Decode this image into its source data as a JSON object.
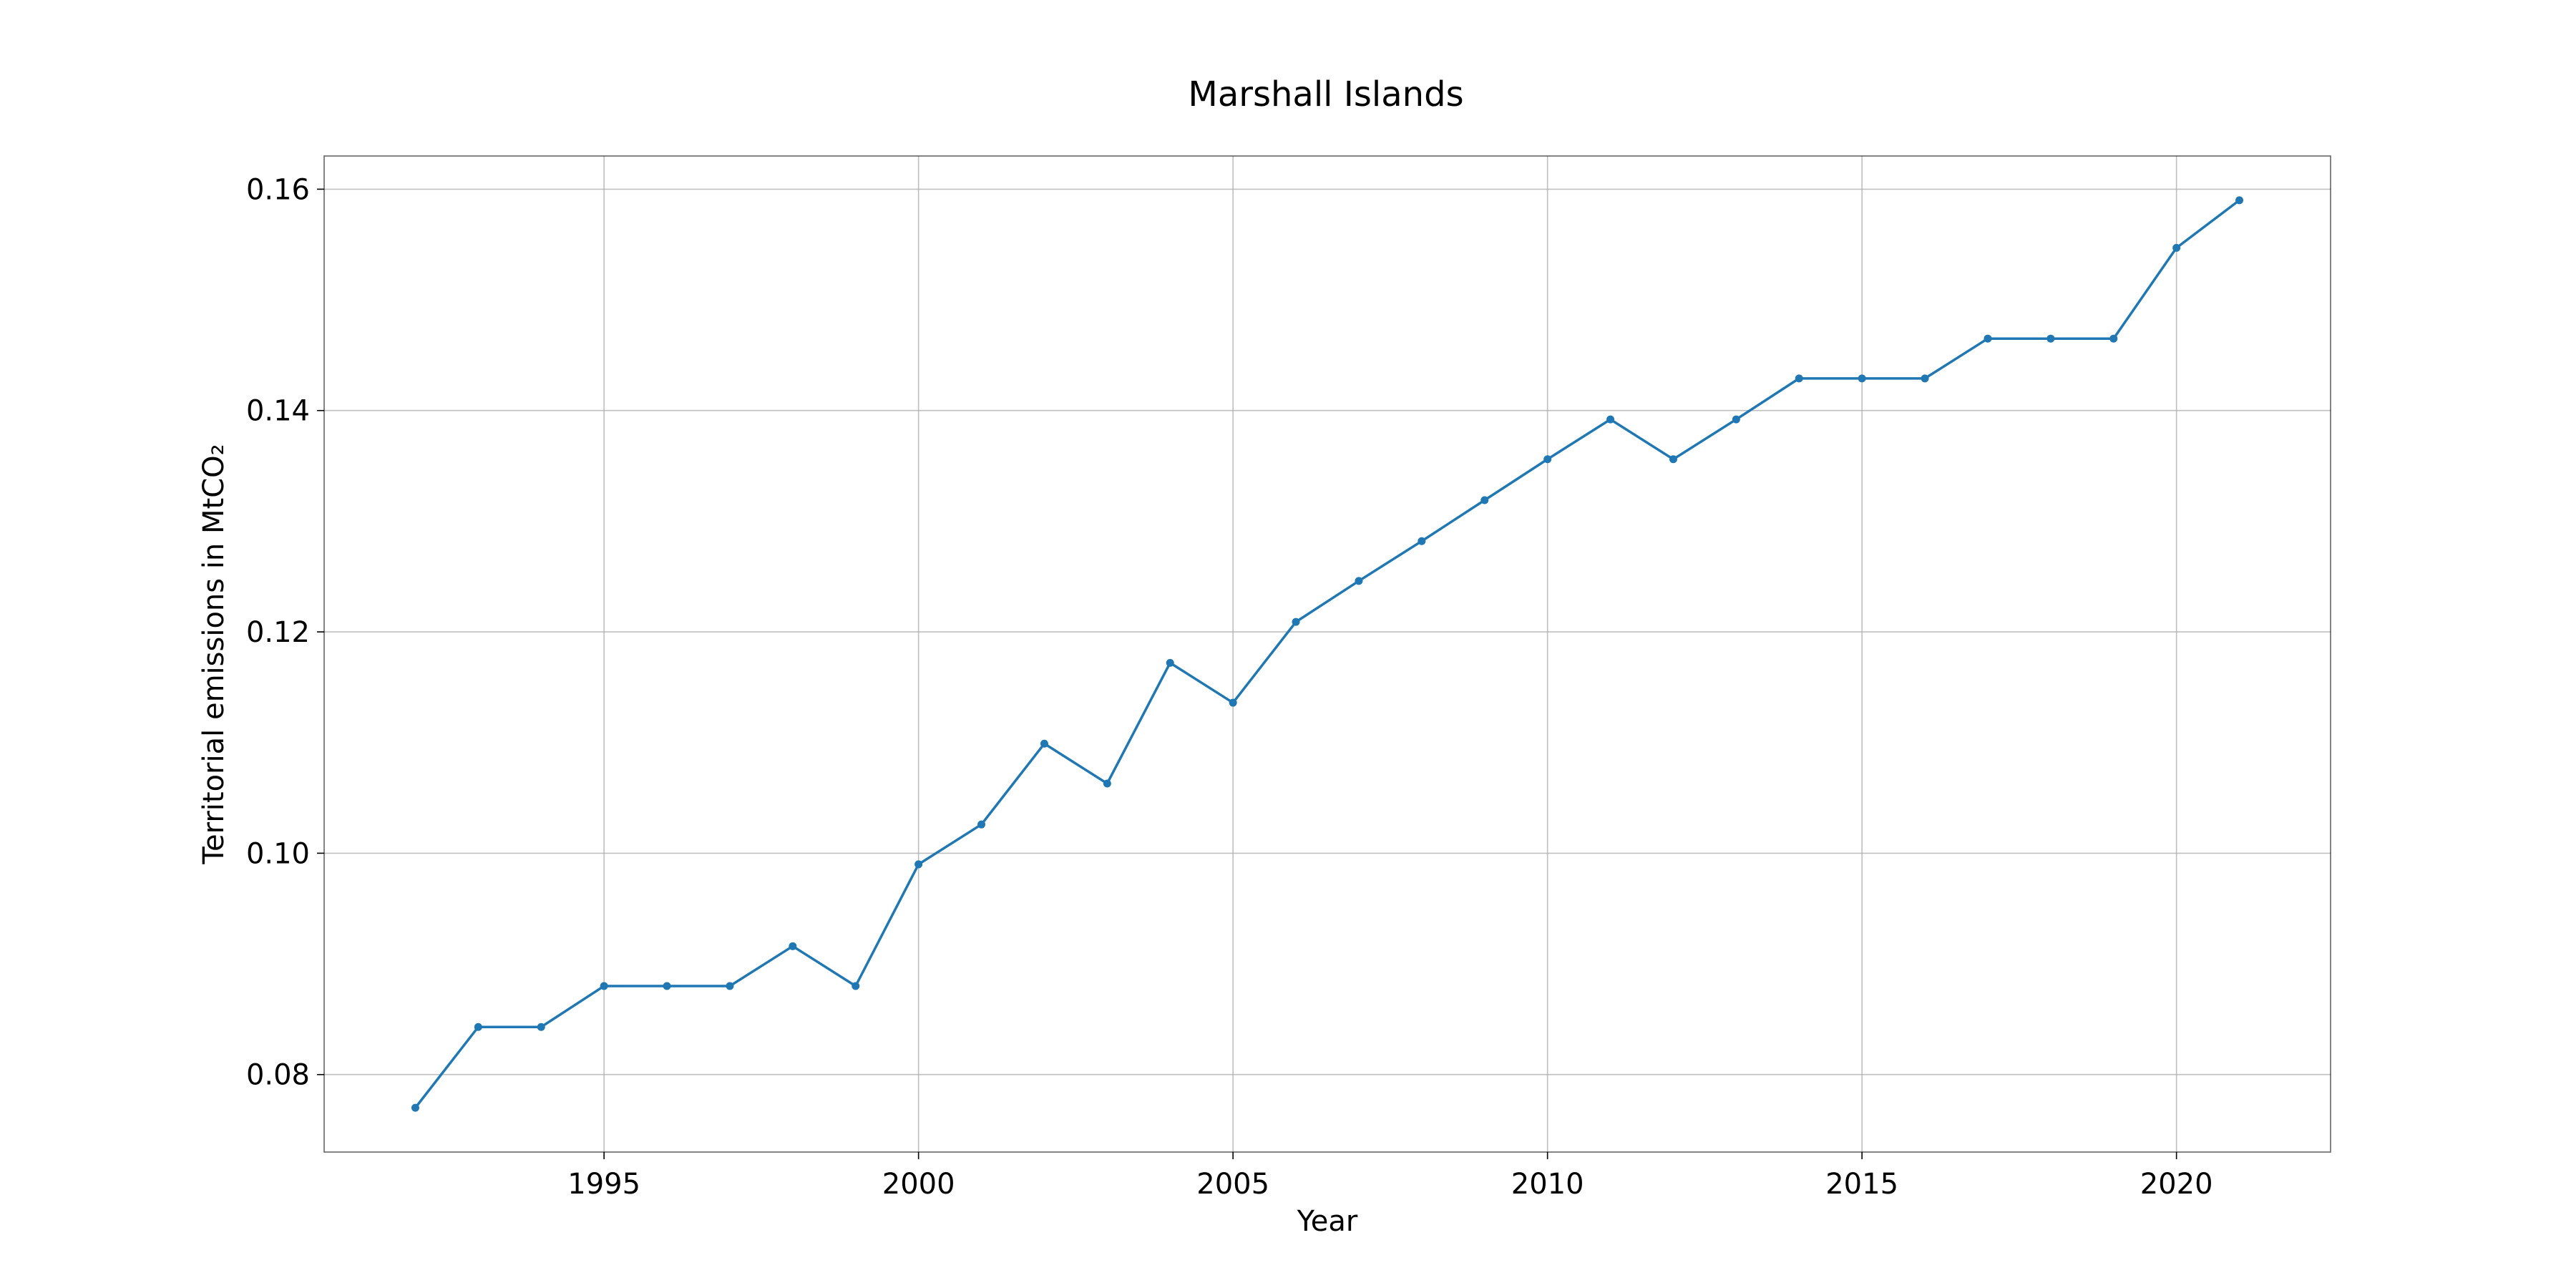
{
  "chart_data": {
    "type": "line",
    "title": "Marshall Islands",
    "xlabel": "Year",
    "ylabel": "Territorial emissions in MtCO₂",
    "xlim": [
      1990.55,
      2022.45
    ],
    "ylim": [
      0.073,
      0.163
    ],
    "x_ticks": [
      {
        "value": 1995,
        "label": "1995"
      },
      {
        "value": 2000,
        "label": "2000"
      },
      {
        "value": 2005,
        "label": "2005"
      },
      {
        "value": 2010,
        "label": "2010"
      },
      {
        "value": 2015,
        "label": "2015"
      },
      {
        "value": 2020,
        "label": "2020"
      }
    ],
    "y_ticks": [
      {
        "value": 0.08,
        "label": "0.08"
      },
      {
        "value": 0.1,
        "label": "0.10"
      },
      {
        "value": 0.12,
        "label": "0.12"
      },
      {
        "value": 0.14,
        "label": "0.14"
      },
      {
        "value": 0.16,
        "label": "0.16"
      }
    ],
    "grid": true,
    "line_color": "#1f77b4",
    "series": [
      {
        "x": [
          1992,
          1993,
          1994,
          1995,
          1996,
          1997,
          1998,
          1999,
          2000,
          2001,
          2002,
          2003,
          2004,
          2005,
          2006,
          2007,
          2008,
          2009,
          2010,
          2011,
          2012,
          2013,
          2014,
          2015,
          2016,
          2017,
          2018,
          2019,
          2020,
          2021
        ],
        "values": [
          0.077,
          0.0843,
          0.0843,
          0.088,
          0.088,
          0.088,
          0.0916,
          0.088,
          0.099,
          0.1026,
          0.1099,
          0.1063,
          0.1172,
          0.1136,
          0.1209,
          0.1246,
          0.1282,
          0.1319,
          0.1356,
          0.1392,
          0.1356,
          0.1392,
          0.1429,
          0.1429,
          0.1429,
          0.1465,
          0.1465,
          0.1465,
          0.1547,
          0.159
        ]
      }
    ]
  }
}
